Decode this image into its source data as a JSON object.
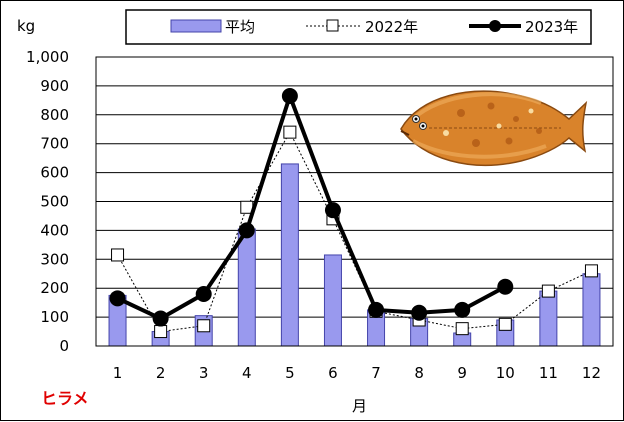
{
  "chart_data": {
    "type": "bar+line",
    "categories": [
      "1",
      "2",
      "3",
      "4",
      "5",
      "6",
      "7",
      "8",
      "9",
      "10",
      "11",
      "12"
    ],
    "xlabel": "月",
    "ylabel": "kg",
    "ylim": [
      0,
      1000
    ],
    "yticks": [
      "0",
      "100",
      "200",
      "300",
      "400",
      "500",
      "600",
      "700",
      "800",
      "900",
      "1,000"
    ],
    "grid": true,
    "legend_position": "top",
    "series": [
      {
        "name": "平均",
        "kind": "bar",
        "color": "#9999ee",
        "values": [
          175,
          50,
          105,
          405,
          630,
          315,
          125,
          95,
          45,
          90,
          190,
          250
        ]
      },
      {
        "name": "2022年",
        "kind": "line-dashed",
        "marker": "open-square",
        "color": "#000000",
        "values": [
          315,
          50,
          70,
          480,
          740,
          440,
          120,
          90,
          60,
          75,
          190,
          260
        ]
      },
      {
        "name": "2023年",
        "kind": "line-bold",
        "marker": "filled-circle",
        "color": "#000000",
        "values": [
          165,
          95,
          180,
          400,
          865,
          470,
          125,
          115,
          125,
          205,
          null,
          null
        ]
      }
    ]
  },
  "species_label": "ヒラメ",
  "fish_icon": "flounder-fish-illustration"
}
